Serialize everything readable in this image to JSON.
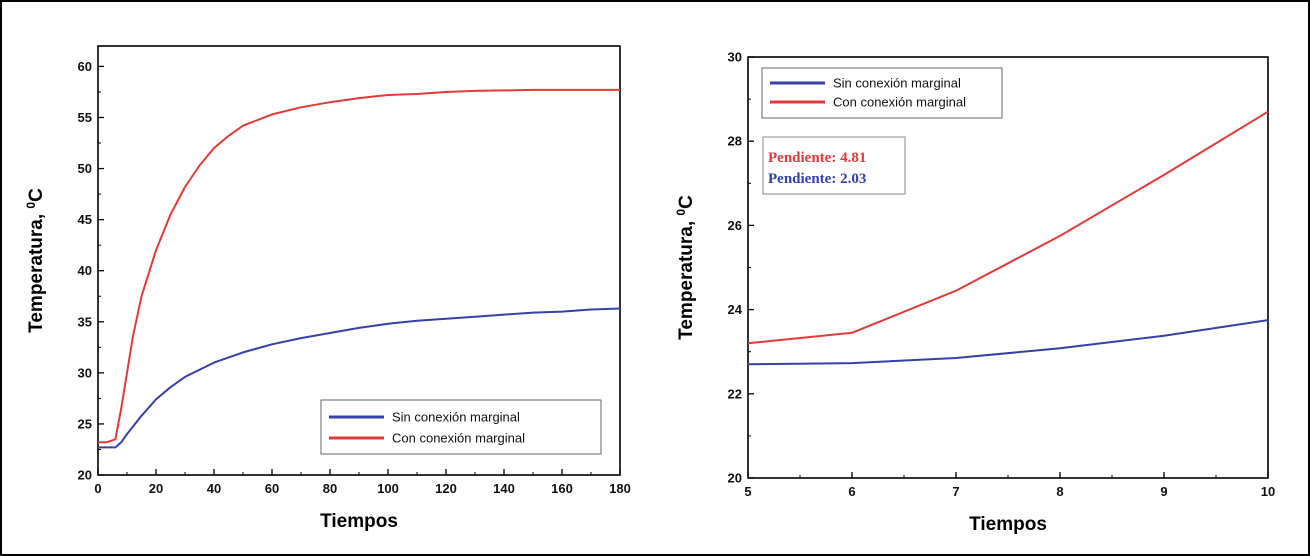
{
  "chart_data": [
    {
      "type": "line",
      "xlabel": "Tiempos",
      "ylabel": "Temperatura, ",
      "ylabel_sup": "0",
      "ylabel_unit": "C",
      "xlim": [
        0,
        180
      ],
      "ylim": [
        20,
        62
      ],
      "xticks": [
        0,
        20,
        40,
        60,
        80,
        100,
        120,
        140,
        160,
        180
      ],
      "yticks": [
        20,
        25,
        30,
        35,
        40,
        45,
        50,
        55,
        60
      ],
      "grid": false,
      "legend_position": "bottom-right",
      "series": [
        {
          "name": "Sin conexión marginal",
          "color": "#3540a8",
          "x": [
            0,
            3,
            6,
            8,
            10,
            15,
            20,
            25,
            30,
            40,
            50,
            60,
            70,
            80,
            90,
            100,
            110,
            120,
            130,
            140,
            150,
            160,
            170,
            180
          ],
          "y": [
            22.7,
            22.7,
            22.7,
            23.2,
            24.0,
            25.8,
            27.4,
            28.6,
            29.6,
            31.0,
            32.0,
            32.8,
            33.4,
            33.9,
            34.4,
            34.8,
            35.1,
            35.3,
            35.5,
            35.7,
            35.9,
            36.0,
            36.2,
            36.3
          ]
        },
        {
          "name": "Con conexión marginal",
          "color": "#e03a3a",
          "x": [
            0,
            3,
            6,
            8,
            10,
            12,
            15,
            20,
            25,
            30,
            35,
            40,
            45,
            50,
            60,
            70,
            80,
            90,
            100,
            110,
            120,
            130,
            140,
            150,
            160,
            170,
            180
          ],
          "y": [
            23.2,
            23.2,
            23.5,
            26.5,
            30.0,
            33.5,
            37.5,
            42.0,
            45.5,
            48.2,
            50.3,
            52.0,
            53.2,
            54.2,
            55.3,
            56.0,
            56.5,
            56.9,
            57.2,
            57.3,
            57.5,
            57.6,
            57.65,
            57.7,
            57.7,
            57.7,
            57.7
          ]
        }
      ]
    },
    {
      "type": "line",
      "xlabel": "Tiempos",
      "ylabel": "Temperatura, ",
      "ylabel_sup": "0",
      "ylabel_unit": "C",
      "xlim": [
        5,
        10
      ],
      "ylim": [
        20,
        30
      ],
      "xticks": [
        5,
        6,
        7,
        8,
        9,
        10
      ],
      "yticks": [
        20,
        22,
        24,
        26,
        28,
        30
      ],
      "grid": false,
      "legend_position": "top-left",
      "annotations": [
        {
          "text": "Pendiente: 4.81",
          "color": "#e03a3a"
        },
        {
          "text": "Pendiente: 2.03",
          "color": "#3540a8"
        }
      ],
      "series": [
        {
          "name": "Sin conexión marginal",
          "color": "#3540a8",
          "x": [
            5,
            6,
            7,
            8,
            9,
            10
          ],
          "y": [
            22.7,
            22.73,
            22.85,
            23.08,
            23.38,
            23.75
          ]
        },
        {
          "name": "Con conexión marginal",
          "color": "#e03a3a",
          "x": [
            5,
            6,
            7,
            8,
            9,
            10
          ],
          "y": [
            23.2,
            23.45,
            24.45,
            25.75,
            27.2,
            28.7
          ]
        }
      ]
    }
  ]
}
